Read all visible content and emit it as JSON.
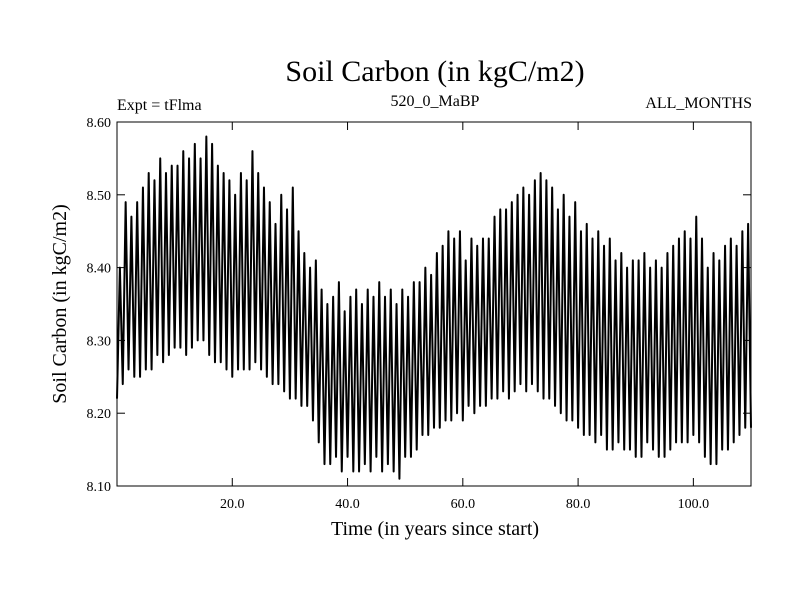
{
  "chart_data": {
    "type": "line",
    "title": "Soil Carbon (in kgC/m2)",
    "subtitle_left": "Expt = tFlma",
    "subtitle_center": "520_0_MaBP",
    "subtitle_right": "ALL_MONTHS",
    "xlabel": "Time (in years since start)",
    "ylabel": "Soil Carbon (in kgC/m2)",
    "xlim": [
      0,
      110
    ],
    "ylim": [
      8.1,
      8.6
    ],
    "x_ticks": [
      20,
      40,
      60,
      80,
      100
    ],
    "x_tick_labels": [
      "20.0",
      "40.0",
      "60.0",
      "80.0",
      "100.0"
    ],
    "y_ticks": [
      8.1,
      8.2,
      8.3,
      8.4,
      8.5,
      8.6
    ],
    "y_tick_labels": [
      "8.10",
      "8.20",
      "8.30",
      "8.40",
      "8.50",
      "8.60"
    ],
    "series": [
      {
        "name": "Soil Carbon",
        "description_note": "annual cycle with max/min per year",
        "years": [
          0,
          1,
          2,
          3,
          4,
          5,
          6,
          7,
          8,
          9,
          10,
          11,
          12,
          13,
          14,
          15,
          16,
          17,
          18,
          19,
          20,
          21,
          22,
          23,
          24,
          25,
          26,
          27,
          28,
          29,
          30,
          31,
          32,
          33,
          34,
          35,
          36,
          37,
          38,
          39,
          40,
          41,
          42,
          43,
          44,
          45,
          46,
          47,
          48,
          49,
          50,
          51,
          52,
          53,
          54,
          55,
          56,
          57,
          58,
          59,
          60,
          61,
          62,
          63,
          64,
          65,
          66,
          67,
          68,
          69,
          70,
          71,
          72,
          73,
          74,
          75,
          76,
          77,
          78,
          79,
          80,
          81,
          82,
          83,
          84,
          85,
          86,
          87,
          88,
          89,
          90,
          91,
          92,
          93,
          94,
          95,
          96,
          97,
          98,
          99,
          100,
          101,
          102,
          103,
          104,
          105,
          106,
          107,
          108,
          109
        ],
        "annual_max": [
          8.4,
          8.49,
          8.47,
          8.49,
          8.51,
          8.53,
          8.52,
          8.55,
          8.53,
          8.54,
          8.54,
          8.56,
          8.55,
          8.57,
          8.55,
          8.58,
          8.57,
          8.54,
          8.53,
          8.52,
          8.5,
          8.53,
          8.52,
          8.56,
          8.53,
          8.51,
          8.49,
          8.46,
          8.5,
          8.48,
          8.51,
          8.45,
          8.42,
          8.4,
          8.41,
          8.37,
          8.35,
          8.36,
          8.38,
          8.34,
          8.36,
          8.37,
          8.35,
          8.37,
          8.36,
          8.38,
          8.36,
          8.37,
          8.35,
          8.37,
          8.36,
          8.38,
          8.38,
          8.4,
          8.39,
          8.42,
          8.43,
          8.45,
          8.44,
          8.45,
          8.41,
          8.44,
          8.43,
          8.44,
          8.44,
          8.47,
          8.48,
          8.48,
          8.49,
          8.5,
          8.51,
          8.5,
          8.52,
          8.53,
          8.52,
          8.51,
          8.48,
          8.5,
          8.47,
          8.49,
          8.45,
          8.46,
          8.44,
          8.45,
          8.43,
          8.44,
          8.41,
          8.42,
          8.4,
          8.41,
          8.41,
          8.42,
          8.4,
          8.41,
          8.4,
          8.42,
          8.43,
          8.44,
          8.45,
          8.44,
          8.47,
          8.44,
          8.4,
          8.42,
          8.41,
          8.43,
          8.44,
          8.43,
          8.45,
          8.46
        ],
        "annual_min": [
          8.22,
          8.24,
          8.26,
          8.25,
          8.25,
          8.26,
          8.26,
          8.28,
          8.27,
          8.28,
          8.29,
          8.29,
          8.28,
          8.29,
          8.3,
          8.3,
          8.28,
          8.27,
          8.27,
          8.26,
          8.25,
          8.26,
          8.26,
          8.26,
          8.27,
          8.26,
          8.25,
          8.24,
          8.24,
          8.23,
          8.22,
          8.22,
          8.21,
          8.21,
          8.19,
          8.16,
          8.13,
          8.13,
          8.14,
          8.12,
          8.14,
          8.12,
          8.12,
          8.13,
          8.12,
          8.14,
          8.12,
          8.13,
          8.12,
          8.11,
          8.14,
          8.14,
          8.15,
          8.17,
          8.17,
          8.18,
          8.18,
          8.19,
          8.19,
          8.2,
          8.19,
          8.21,
          8.2,
          8.21,
          8.21,
          8.22,
          8.22,
          8.23,
          8.22,
          8.23,
          8.24,
          8.23,
          8.24,
          8.23,
          8.22,
          8.22,
          8.21,
          8.2,
          8.19,
          8.19,
          8.18,
          8.17,
          8.17,
          8.16,
          8.17,
          8.15,
          8.15,
          8.16,
          8.15,
          8.15,
          8.14,
          8.14,
          8.16,
          8.15,
          8.14,
          8.14,
          8.15,
          8.16,
          8.16,
          8.16,
          8.17,
          8.16,
          8.14,
          8.13,
          8.13,
          8.15,
          8.15,
          8.16,
          8.17,
          8.18
        ]
      }
    ]
  }
}
